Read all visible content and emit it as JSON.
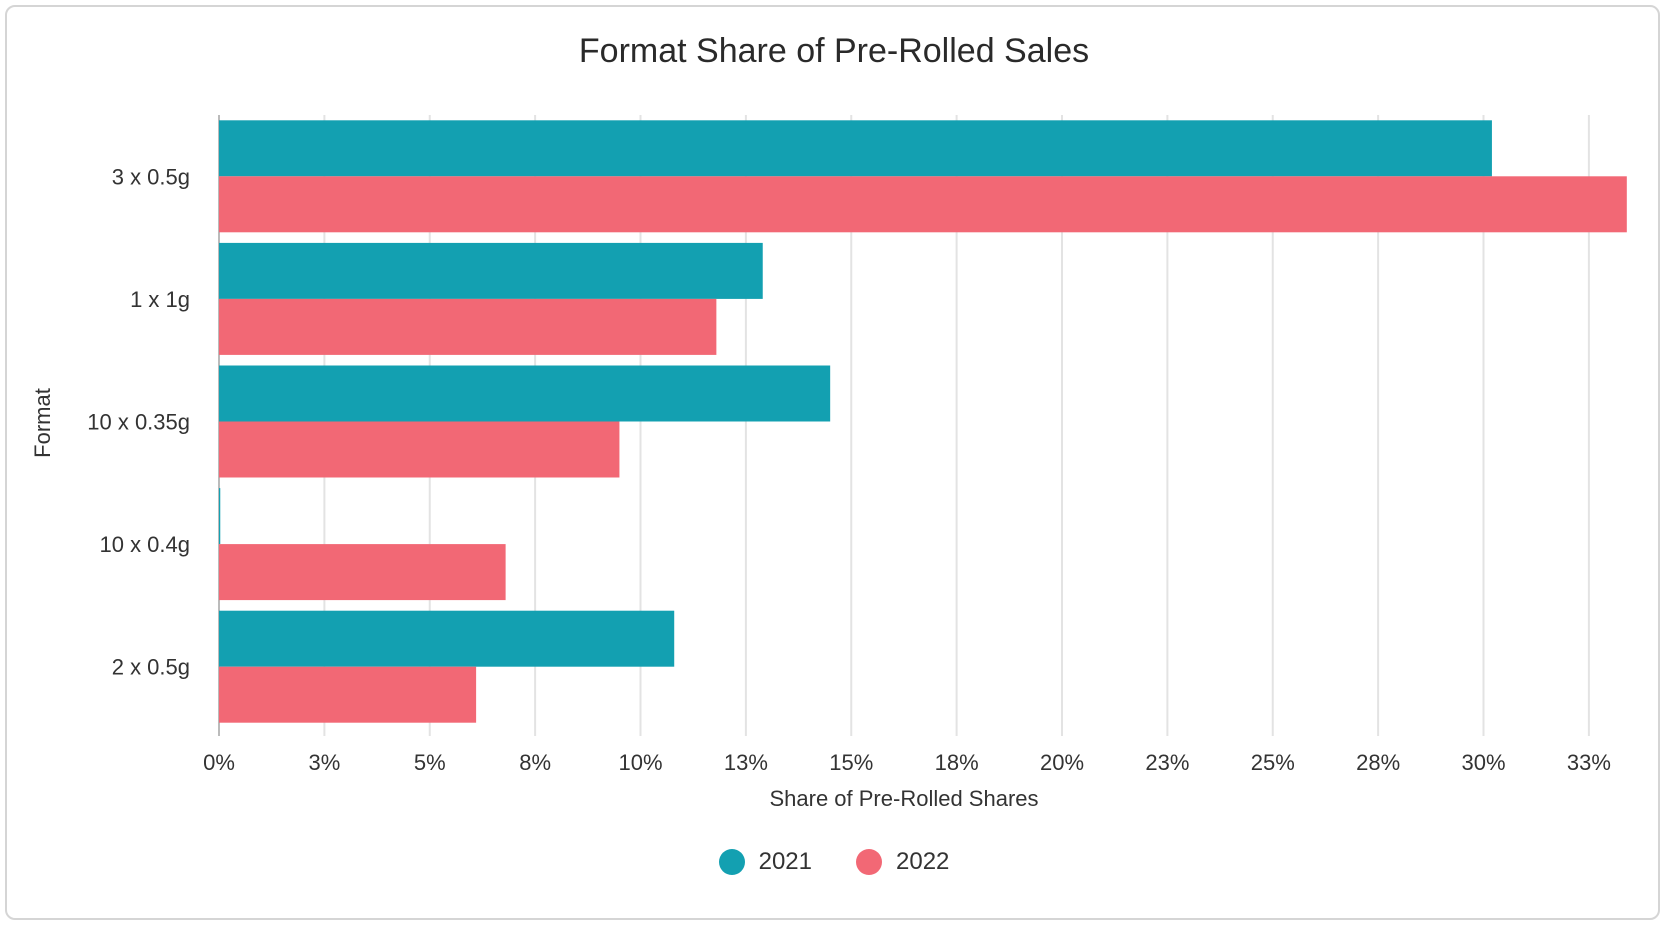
{
  "chart_data": {
    "type": "bar",
    "orientation": "horizontal",
    "title": "Format Share of Pre-Rolled Sales",
    "xlabel": "Share of Pre-Rolled Shares",
    "ylabel": "Format",
    "categories": [
      "3 x 0.5g",
      "1 x 1g",
      "10 x 0.35g",
      "10 x 0.4g",
      "2 x 0.5g"
    ],
    "series": [
      {
        "name": "2021",
        "color": "#13a0b1",
        "values": [
          30.2,
          12.9,
          14.5,
          0.03,
          10.8
        ]
      },
      {
        "name": "2022",
        "color": "#f26875",
        "values": [
          33.4,
          11.8,
          9.5,
          6.8,
          6.1
        ]
      }
    ],
    "xlim": [
      0,
      33.4
    ],
    "xticks": [
      0,
      2.5,
      5,
      7.5,
      10,
      12.5,
      15,
      17.5,
      20,
      22.5,
      25,
      27.5,
      30,
      32.5
    ],
    "xtick_labels": [
      "0%",
      "3%",
      "5%",
      "8%",
      "10%",
      "13%",
      "15%",
      "18%",
      "20%",
      "23%",
      "25%",
      "28%",
      "30%",
      "33%"
    ],
    "grid": true,
    "legend": "bottom"
  }
}
